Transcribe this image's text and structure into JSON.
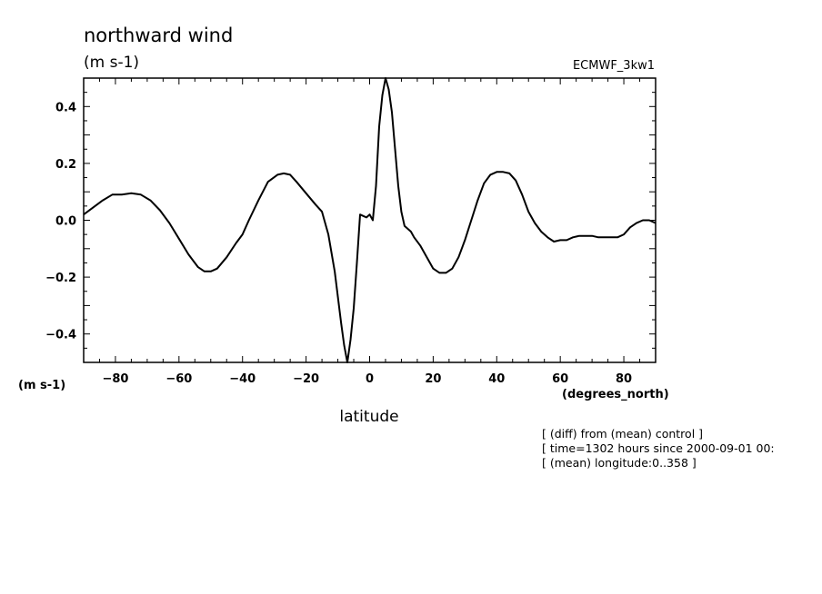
{
  "chart_data": {
    "type": "line",
    "title": "northward wind",
    "units_label": "(m s-1)",
    "model_label": "ECMWF_3kw1",
    "y_units_label": "(m s-1)",
    "x_units_label": "(degrees_north)",
    "xlabel": "latitude",
    "xlim": [
      -90,
      90
    ],
    "ylim": [
      -0.5,
      0.5
    ],
    "x_ticks": [
      -80,
      -60,
      -40,
      -20,
      0,
      20,
      40,
      60,
      80
    ],
    "x_tick_labels": [
      "−80",
      "−60",
      "−40",
      "−20",
      "0",
      "20",
      "40",
      "60",
      "80"
    ],
    "y_ticks": [
      0.4,
      0.2,
      0.0,
      -0.2,
      -0.4
    ],
    "y_tick_labels": [
      "0.4",
      "0.2",
      "0.0",
      "−0.2",
      "−0.4"
    ],
    "grid": false,
    "legend": "none",
    "series": [
      {
        "x": [
          -90,
          -84,
          -81,
          -78,
          -75,
          -72,
          -69,
          -66,
          -63,
          -60,
          -57,
          -54,
          -52,
          -50,
          -48,
          -45,
          -42,
          -40,
          -38,
          -35,
          -32,
          -29,
          -27,
          -25,
          -23,
          -20,
          -17,
          -15,
          -13,
          -11,
          -10,
          -9,
          -8,
          -7,
          -6,
          -5,
          -4,
          -3,
          -2,
          -1,
          0,
          1,
          2,
          3,
          4,
          5,
          6,
          7,
          8,
          9,
          10,
          11,
          12,
          13,
          14,
          16,
          18,
          20,
          22,
          24,
          26,
          28,
          30,
          32,
          34,
          36,
          38,
          40,
          42,
          44,
          46,
          48,
          50,
          52,
          54,
          56,
          58,
          60,
          62,
          64,
          66,
          68,
          70,
          72,
          74,
          76,
          78,
          80,
          82,
          84,
          86,
          88,
          90
        ],
        "y": [
          0.02,
          0.07,
          0.09,
          0.09,
          0.095,
          0.09,
          0.07,
          0.035,
          -0.01,
          -0.065,
          -0.12,
          -0.165,
          -0.18,
          -0.18,
          -0.17,
          -0.13,
          -0.08,
          -0.05,
          0.0,
          0.07,
          0.135,
          0.16,
          0.165,
          0.16,
          0.135,
          0.095,
          0.055,
          0.03,
          -0.05,
          -0.18,
          -0.27,
          -0.36,
          -0.44,
          -0.5,
          -0.42,
          -0.31,
          -0.15,
          0.02,
          0.015,
          0.01,
          0.02,
          0.0,
          0.12,
          0.33,
          0.44,
          0.5,
          0.46,
          0.38,
          0.25,
          0.12,
          0.03,
          -0.02,
          -0.03,
          -0.04,
          -0.06,
          -0.09,
          -0.13,
          -0.17,
          -0.185,
          -0.185,
          -0.17,
          -0.13,
          -0.07,
          0.0,
          0.07,
          0.13,
          0.16,
          0.17,
          0.17,
          0.165,
          0.14,
          0.09,
          0.03,
          -0.01,
          -0.04,
          -0.06,
          -0.075,
          -0.07,
          -0.07,
          -0.06,
          -0.055,
          -0.055,
          -0.055,
          -0.06,
          -0.06,
          -0.06,
          -0.06,
          -0.05,
          -0.025,
          -0.01,
          0.0,
          0.0,
          -0.01
        ]
      }
    ],
    "annotations": [
      "[ (diff) from (mean) control ]",
      "[ time=1302 hours since 2000-09-01 00:",
      "[ (mean) longitude:0..358 ]"
    ]
  }
}
